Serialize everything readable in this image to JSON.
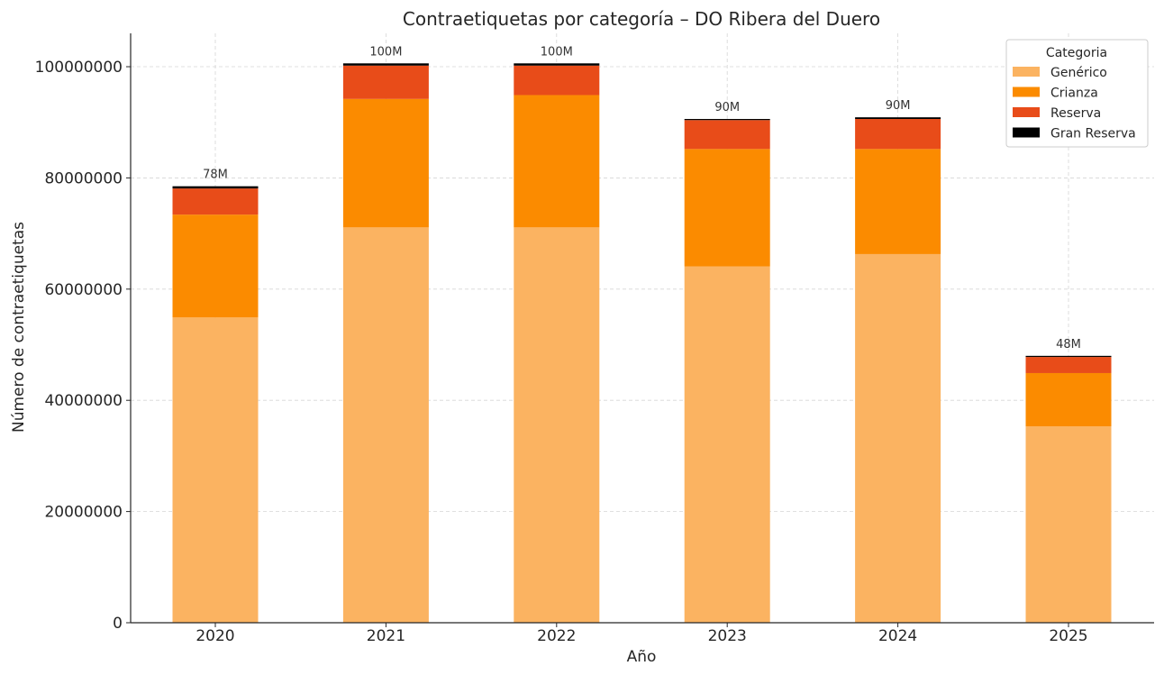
{
  "chart_data": {
    "type": "bar",
    "stacked": true,
    "title": "Contraetiquetas por categoría – DO Ribera del Duero",
    "xlabel": "Año",
    "ylabel": "Número de contraetiquetas",
    "categories": [
      "2020",
      "2021",
      "2022",
      "2023",
      "2024",
      "2025"
    ],
    "ylim": [
      0,
      106000000
    ],
    "yticks": [
      0,
      20000000,
      40000000,
      60000000,
      80000000,
      100000000
    ],
    "ytick_labels": [
      "0",
      "20000000",
      "40000000",
      "60000000",
      "80000000",
      "100000000"
    ],
    "grid": true,
    "legend": {
      "title": "Categoria",
      "placement": "top-right"
    },
    "series": [
      {
        "name": "Genérico",
        "color": "#fbb361",
        "values": [
          54900000,
          71100000,
          71100000,
          64100000,
          66300000,
          35300000
        ]
      },
      {
        "name": "Crianza",
        "color": "#fb8b00",
        "values": [
          18500000,
          23100000,
          23800000,
          21100000,
          18900000,
          9600000
        ]
      },
      {
        "name": "Reserva",
        "color": "#e84c19",
        "values": [
          4700000,
          6000000,
          5300000,
          5200000,
          5400000,
          2900000
        ]
      },
      {
        "name": "Gran Reserva",
        "color": "#000000",
        "values": [
          400000,
          400000,
          400000,
          200000,
          300000,
          200000
        ]
      }
    ],
    "total_labels": [
      "78M",
      "100M",
      "100M",
      "90M",
      "90M",
      "48M"
    ]
  }
}
